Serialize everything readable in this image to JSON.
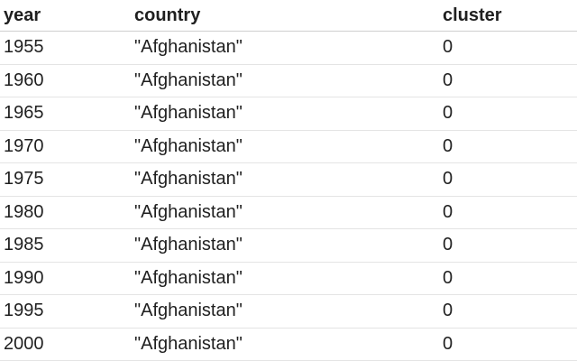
{
  "table": {
    "columns": [
      "year",
      "country",
      "cluster"
    ],
    "rows": [
      [
        "1955",
        "\"Afghanistan\"",
        "0"
      ],
      [
        "1960",
        "\"Afghanistan\"",
        "0"
      ],
      [
        "1965",
        "\"Afghanistan\"",
        "0"
      ],
      [
        "1970",
        "\"Afghanistan\"",
        "0"
      ],
      [
        "1975",
        "\"Afghanistan\"",
        "0"
      ],
      [
        "1980",
        "\"Afghanistan\"",
        "0"
      ],
      [
        "1985",
        "\"Afghanistan\"",
        "0"
      ],
      [
        "1990",
        "\"Afghanistan\"",
        "0"
      ],
      [
        "1995",
        "\"Afghanistan\"",
        "0"
      ],
      [
        "2000",
        "\"Afghanistan\"",
        "0"
      ]
    ]
  }
}
